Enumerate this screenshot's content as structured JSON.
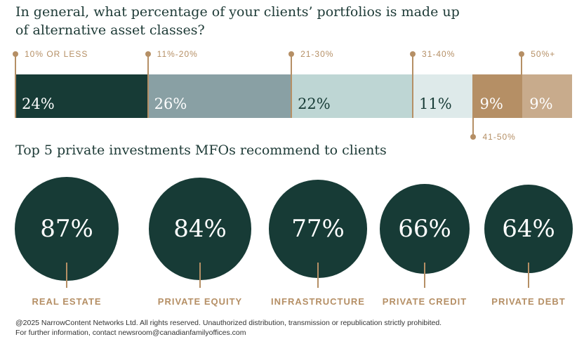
{
  "question": "In general, what percentage of your clients’ portfolios is made up of alternative asset classes?",
  "section2_title": "Top 5 private investments MFOs recommend to clients",
  "chart_data": [
    {
      "type": "bar",
      "stacked": true,
      "categories": [
        "10% OR LESS",
        "11%-20%",
        "21-30%",
        "31-40%",
        "41-50%",
        "50%+"
      ],
      "values": [
        24,
        26,
        22,
        11,
        9,
        9
      ],
      "value_labels": [
        "24%",
        "26%",
        "22%",
        "11%",
        "9%",
        "9%"
      ],
      "colors": [
        "#173b36",
        "#89a0a4",
        "#bed6d4",
        "#deeaea",
        "#b58f65",
        "#c8ab8c"
      ],
      "text_colors": [
        "#ffffff",
        "#ffffff",
        "#173b36",
        "#173b36",
        "#ffffff",
        "#ffffff"
      ]
    },
    {
      "type": "bubble",
      "categories": [
        "REAL ESTATE",
        "PRIVATE EQUITY",
        "INFRASTRUCTURE",
        "PRIVATE CREDIT",
        "PRIVATE DEBT"
      ],
      "values": [
        87,
        84,
        77,
        66,
        64
      ],
      "value_labels": [
        "87%",
        "84%",
        "77%",
        "66%",
        "64%"
      ]
    }
  ],
  "footer": {
    "line1": "@2025 NarrowContent Networks Ltd. All rights reserved. Unauthorized distribution, transmission or republication strictly prohibited.",
    "line2": "For further information, contact newsroom@canadianfamilyoffices.com"
  }
}
